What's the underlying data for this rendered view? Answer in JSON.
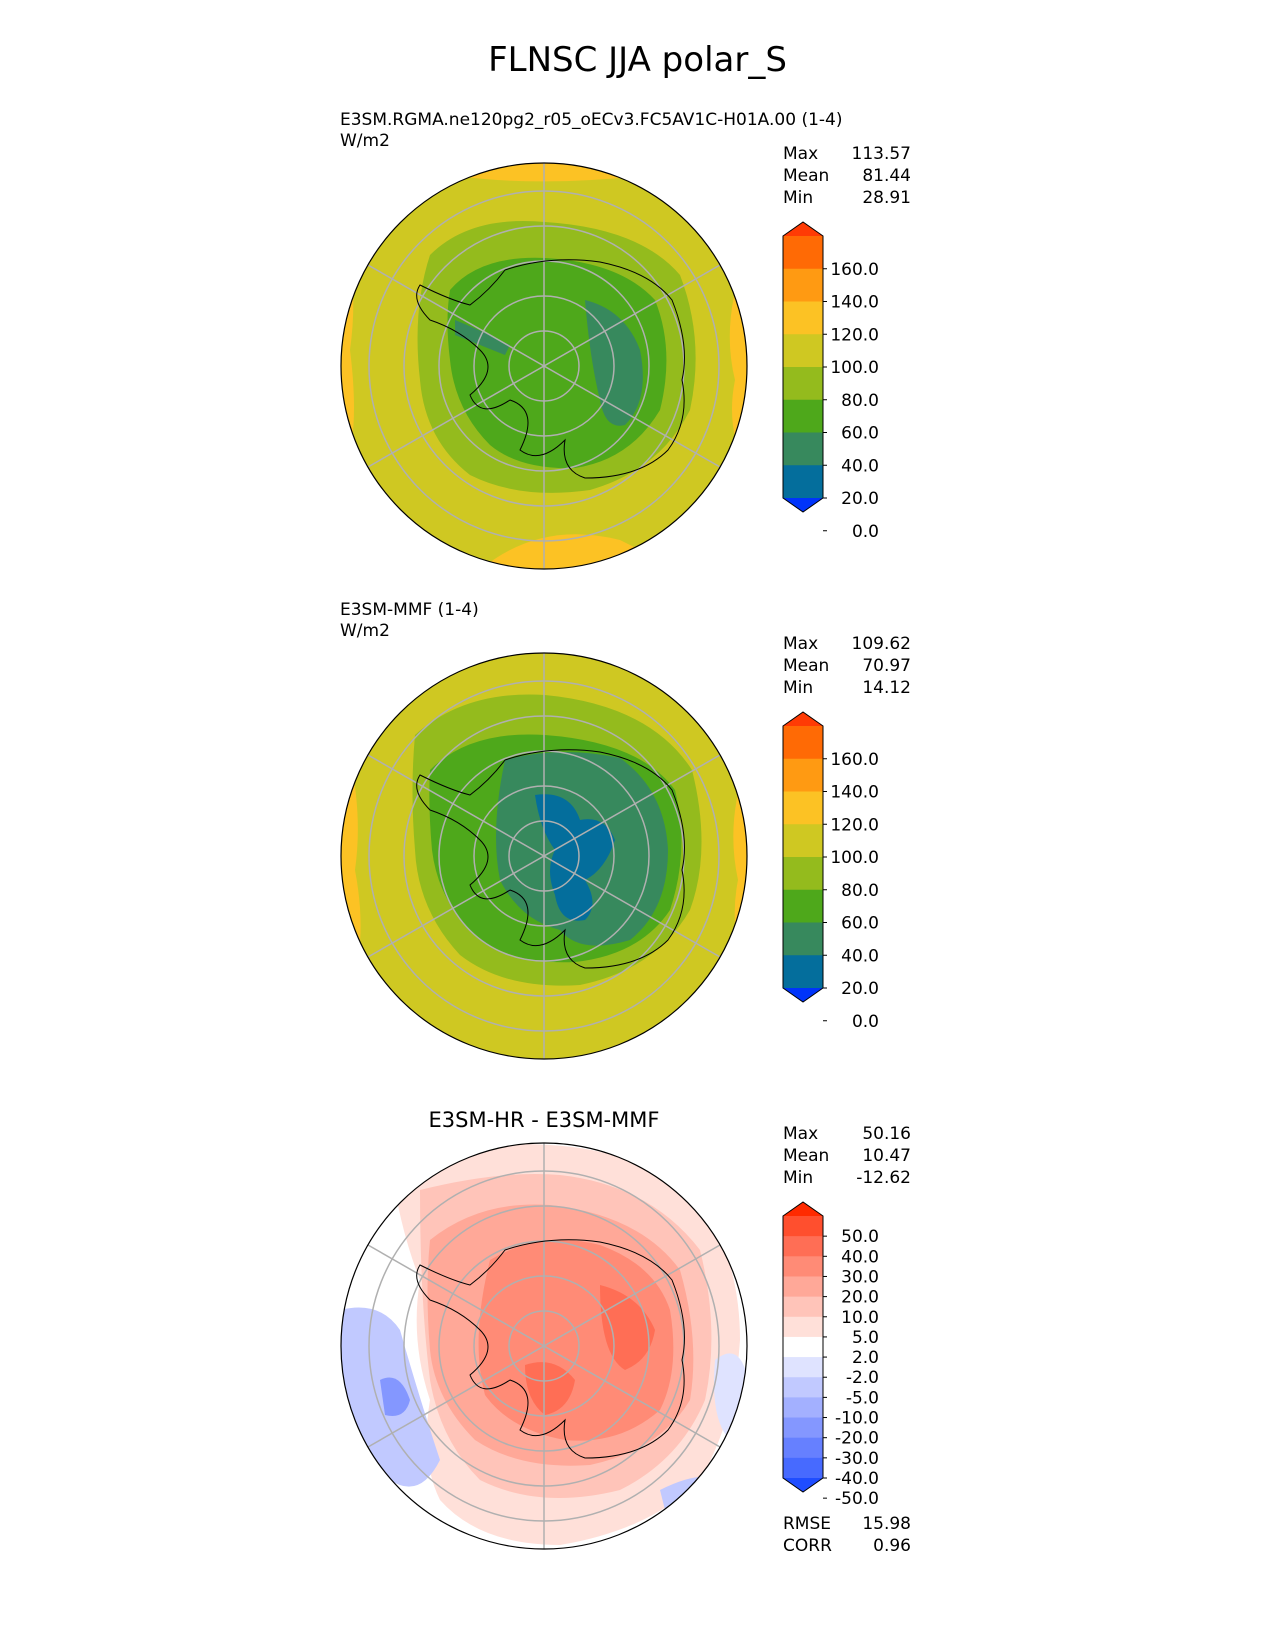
{
  "title": "FLNSC JJA polar_S",
  "panels": [
    {
      "id": "test",
      "title_lines": [
        "E3SM.RGMA.ne120pg2_r05_oECv3.FC5AV1C-H01A.00 (1-4)",
        "W/m2"
      ],
      "stats": [
        {
          "label": "Max",
          "value": "113.57"
        },
        {
          "label": "Mean",
          "value": "81.44"
        },
        {
          "label": "Min",
          "value": "28.91"
        }
      ],
      "colorbar": {
        "ticks": [
          "160.0",
          "140.0",
          "120.0",
          "100.0",
          "80.0",
          "60.0",
          "40.0",
          "20.0",
          "0.0"
        ],
        "colors": [
          "#ff3b05",
          "#ff6a05",
          "#ff9a12",
          "#fcc224",
          "#cfc822",
          "#94bb1d",
          "#4ea81b",
          "#37895d",
          "#046e9c",
          "#0034fa"
        ]
      }
    },
    {
      "id": "ref",
      "title_lines": [
        "E3SM-MMF (1-4)",
        "W/m2"
      ],
      "stats": [
        {
          "label": "Max",
          "value": "109.62"
        },
        {
          "label": "Mean",
          "value": "70.97"
        },
        {
          "label": "Min",
          "value": "14.12"
        }
      ],
      "colorbar": {
        "ticks": [
          "160.0",
          "140.0",
          "120.0",
          "100.0",
          "80.0",
          "60.0",
          "40.0",
          "20.0",
          "0.0"
        ],
        "colors": [
          "#ff3b05",
          "#ff6a05",
          "#ff9a12",
          "#fcc224",
          "#cfc822",
          "#94bb1d",
          "#4ea81b",
          "#37895d",
          "#046e9c",
          "#0034fa"
        ]
      }
    },
    {
      "id": "diff",
      "title_lines": [
        "E3SM-HR - E3SM-MMF"
      ],
      "stats": [
        {
          "label": "Max",
          "value": "50.16"
        },
        {
          "label": "Mean",
          "value": "10.47"
        },
        {
          "label": "Min",
          "value": "-12.62"
        }
      ],
      "colorbar": {
        "ticks": [
          "50.0",
          "40.0",
          "30.0",
          "20.0",
          "10.0",
          "5.0",
          "2.0",
          "-2.0",
          "-5.0",
          "-10.0",
          "-20.0",
          "-30.0",
          "-40.0",
          "-50.0"
        ],
        "colors": [
          "#ff2a00",
          "#ff4f2e",
          "#ff6e55",
          "#ff8b76",
          "#ffa898",
          "#ffc4b9",
          "#ffe0d9",
          "#ffffff",
          "#dfe3ff",
          "#c1c9ff",
          "#a3b0ff",
          "#8497ff",
          "#6680ff",
          "#476aff",
          "#1f4dff"
        ]
      },
      "extra_stats": [
        {
          "label": "RMSE",
          "value": "15.98"
        },
        {
          "label": "CORR",
          "value": "0.96"
        }
      ]
    }
  ],
  "chart_data": [
    {
      "type": "heatmap",
      "title": "E3SM.RGMA.ne120pg2_r05_oECv3.FC5AV1C-H01A.00 (1-4)",
      "units": "W/m2",
      "projection": "south polar stereographic",
      "levels": [
        0,
        20,
        40,
        60,
        80,
        100,
        120,
        140,
        160
      ],
      "max": 113.57,
      "mean": 81.44,
      "min": 28.91
    },
    {
      "type": "heatmap",
      "title": "E3SM-MMF (1-4)",
      "units": "W/m2",
      "projection": "south polar stereographic",
      "levels": [
        0,
        20,
        40,
        60,
        80,
        100,
        120,
        140,
        160
      ],
      "max": 109.62,
      "mean": 70.97,
      "min": 14.12
    },
    {
      "type": "heatmap",
      "title": "E3SM-HR - E3SM-MMF",
      "projection": "south polar stereographic",
      "levels": [
        -50,
        -40,
        -30,
        -20,
        -10,
        -5,
        -2,
        2,
        5,
        10,
        20,
        30,
        40,
        50
      ],
      "max": 50.16,
      "mean": 10.47,
      "min": -12.62,
      "rmse": 15.98,
      "corr": 0.96
    }
  ]
}
